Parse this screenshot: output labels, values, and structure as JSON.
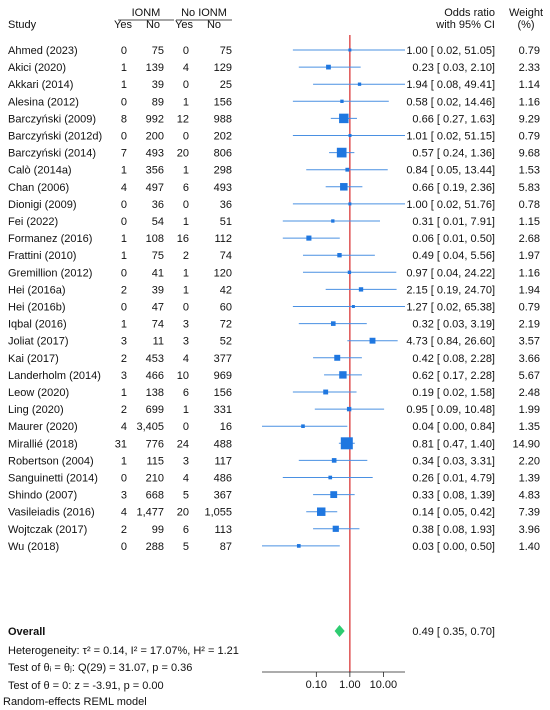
{
  "chart_data": {
    "type": "forest",
    "header": {
      "study": "Study",
      "group1": "IONM",
      "group2": "No IONM",
      "yes": "Yes",
      "no": "No",
      "effect_line1": "Odds ratio",
      "effect_line2": "with 95% CI",
      "weight_line1": "Weight",
      "weight_line2": "(%)"
    },
    "studies": [
      {
        "study": "Ahmed (2023)",
        "ionm_yes": "0",
        "ionm_no": "75",
        "noionm_yes": "0",
        "noionm_no": "75",
        "or": 1.0,
        "lo": 0.02,
        "hi": 51.05,
        "ci_text": "1.00 [ 0.02, 51.05]",
        "weight": 0.79,
        "weight_text": "0.79"
      },
      {
        "study": "Akici (2020)",
        "ionm_yes": "1",
        "ionm_no": "139",
        "noionm_yes": "4",
        "noionm_no": "129",
        "or": 0.23,
        "lo": 0.03,
        "hi": 2.1,
        "ci_text": "0.23 [ 0.03, 2.10]",
        "weight": 2.33,
        "weight_text": "2.33"
      },
      {
        "study": "Akkari (2014)",
        "ionm_yes": "1",
        "ionm_no": "39",
        "noionm_yes": "0",
        "noionm_no": "25",
        "or": 1.94,
        "lo": 0.08,
        "hi": 49.41,
        "ci_text": "1.94 [ 0.08, 49.41]",
        "weight": 1.14,
        "weight_text": "1.14"
      },
      {
        "study": "Alesina (2012)",
        "ionm_yes": "0",
        "ionm_no": "89",
        "noionm_yes": "1",
        "noionm_no": "156",
        "or": 0.58,
        "lo": 0.02,
        "hi": 14.46,
        "ci_text": "0.58 [ 0.02, 14.46]",
        "weight": 1.16,
        "weight_text": "1.16"
      },
      {
        "study": "Barczyński (2009)",
        "ionm_yes": "8",
        "ionm_no": "992",
        "noionm_yes": "12",
        "noionm_no": "988",
        "or": 0.66,
        "lo": 0.27,
        "hi": 1.63,
        "ci_text": "0.66 [ 0.27, 1.63]",
        "weight": 9.29,
        "weight_text": "9.29"
      },
      {
        "study": "Barczyński (2012d)",
        "ionm_yes": "0",
        "ionm_no": "200",
        "noionm_yes": "0",
        "noionm_no": "202",
        "or": 1.01,
        "lo": 0.02,
        "hi": 51.15,
        "ci_text": "1.01 [ 0.02, 51.15]",
        "weight": 0.79,
        "weight_text": "0.79"
      },
      {
        "study": "Barczyński (2014)",
        "ionm_yes": "7",
        "ionm_no": "493",
        "noionm_yes": "20",
        "noionm_no": "806",
        "or": 0.57,
        "lo": 0.24,
        "hi": 1.36,
        "ci_text": "0.57 [ 0.24, 1.36]",
        "weight": 9.68,
        "weight_text": "9.68"
      },
      {
        "study": "Calò (2014a)",
        "ionm_yes": "1",
        "ionm_no": "356",
        "noionm_yes": "1",
        "noionm_no": "298",
        "or": 0.84,
        "lo": 0.05,
        "hi": 13.44,
        "ci_text": "0.84 [ 0.05, 13.44]",
        "weight": 1.53,
        "weight_text": "1.53"
      },
      {
        "study": "Chan (2006)",
        "ionm_yes": "4",
        "ionm_no": "497",
        "noionm_yes": "6",
        "noionm_no": "493",
        "or": 0.66,
        "lo": 0.19,
        "hi": 2.36,
        "ci_text": "0.66 [ 0.19, 2.36]",
        "weight": 5.83,
        "weight_text": "5.83"
      },
      {
        "study": "Dionigi (2009)",
        "ionm_yes": "0",
        "ionm_no": "36",
        "noionm_yes": "0",
        "noionm_no": "36",
        "or": 1.0,
        "lo": 0.02,
        "hi": 51.76,
        "ci_text": "1.00 [ 0.02, 51.76]",
        "weight": 0.78,
        "weight_text": "0.78"
      },
      {
        "study": "Fei (2022)",
        "ionm_yes": "0",
        "ionm_no": "54",
        "noionm_yes": "1",
        "noionm_no": "51",
        "or": 0.31,
        "lo": 0.01,
        "hi": 7.91,
        "ci_text": "0.31 [ 0.01, 7.91]",
        "weight": 1.15,
        "weight_text": "1.15"
      },
      {
        "study": "Formanez (2016)",
        "ionm_yes": "1",
        "ionm_no": "108",
        "noionm_yes": "16",
        "noionm_no": "112",
        "or": 0.06,
        "lo": 0.01,
        "hi": 0.5,
        "ci_text": "0.06 [ 0.01, 0.50]",
        "weight": 2.68,
        "weight_text": "2.68"
      },
      {
        "study": "Frattini (2010)",
        "ionm_yes": "1",
        "ionm_no": "75",
        "noionm_yes": "2",
        "noionm_no": "74",
        "or": 0.49,
        "lo": 0.04,
        "hi": 5.56,
        "ci_text": "0.49 [ 0.04, 5.56]",
        "weight": 1.97,
        "weight_text": "1.97"
      },
      {
        "study": "Gremillion (2012)",
        "ionm_yes": "0",
        "ionm_no": "41",
        "noionm_yes": "1",
        "noionm_no": "120",
        "or": 0.97,
        "lo": 0.04,
        "hi": 24.22,
        "ci_text": "0.97 [ 0.04, 24.22]",
        "weight": 1.16,
        "weight_text": "1.16"
      },
      {
        "study": "Hei (2016a)",
        "ionm_yes": "2",
        "ionm_no": "39",
        "noionm_yes": "1",
        "noionm_no": "42",
        "or": 2.15,
        "lo": 0.19,
        "hi": 24.7,
        "ci_text": "2.15 [ 0.19, 24.70]",
        "weight": 1.94,
        "weight_text": "1.94"
      },
      {
        "study": "Hei (2016b)",
        "ionm_yes": "0",
        "ionm_no": "47",
        "noionm_yes": "0",
        "noionm_no": "60",
        "or": 1.27,
        "lo": 0.02,
        "hi": 65.38,
        "ci_text": "1.27 [ 0.02, 65.38]",
        "weight": 0.79,
        "weight_text": "0.79"
      },
      {
        "study": "Iqbal (2016)",
        "ionm_yes": "1",
        "ionm_no": "74",
        "noionm_yes": "3",
        "noionm_no": "72",
        "or": 0.32,
        "lo": 0.03,
        "hi": 3.19,
        "ci_text": "0.32 [ 0.03, 3.19]",
        "weight": 2.19,
        "weight_text": "2.19"
      },
      {
        "study": "Joliat (2017)",
        "ionm_yes": "3",
        "ionm_no": "11",
        "noionm_yes": "3",
        "noionm_no": "52",
        "or": 4.73,
        "lo": 0.84,
        "hi": 26.6,
        "ci_text": "4.73 [ 0.84, 26.60]",
        "weight": 3.57,
        "weight_text": "3.57"
      },
      {
        "study": "Kai (2017)",
        "ionm_yes": "2",
        "ionm_no": "453",
        "noionm_yes": "4",
        "noionm_no": "377",
        "or": 0.42,
        "lo": 0.08,
        "hi": 2.28,
        "ci_text": "0.42 [ 0.08, 2.28]",
        "weight": 3.66,
        "weight_text": "3.66"
      },
      {
        "study": "Landerholm (2014)",
        "ionm_yes": "3",
        "ionm_no": "466",
        "noionm_yes": "10",
        "noionm_no": "969",
        "or": 0.62,
        "lo": 0.17,
        "hi": 2.28,
        "ci_text": "0.62 [ 0.17, 2.28]",
        "weight": 5.67,
        "weight_text": "5.67"
      },
      {
        "study": "Leow (2020)",
        "ionm_yes": "1",
        "ionm_no": "138",
        "noionm_yes": "6",
        "noionm_no": "156",
        "or": 0.19,
        "lo": 0.02,
        "hi": 1.58,
        "ci_text": "0.19 [ 0.02, 1.58]",
        "weight": 2.48,
        "weight_text": "2.48"
      },
      {
        "study": "Ling (2020)",
        "ionm_yes": "2",
        "ionm_no": "699",
        "noionm_yes": "1",
        "noionm_no": "331",
        "or": 0.95,
        "lo": 0.09,
        "hi": 10.48,
        "ci_text": "0.95 [ 0.09, 10.48]",
        "weight": 1.99,
        "weight_text": "1.99"
      },
      {
        "study": "Maurer (2020)",
        "ionm_yes": "4",
        "ionm_no": "3,405",
        "noionm_yes": "0",
        "noionm_no": "16",
        "or": 0.04,
        "lo": 0.0,
        "hi": 0.84,
        "ci_text": "0.04 [ 0.00, 0.84]",
        "weight": 1.35,
        "weight_text": "1.35"
      },
      {
        "study": "Mirallié (2018)",
        "ionm_yes": "31",
        "ionm_no": "776",
        "noionm_yes": "24",
        "noionm_no": "488",
        "or": 0.81,
        "lo": 0.47,
        "hi": 1.4,
        "ci_text": "0.81 [ 0.47, 1.40]",
        "weight": 14.9,
        "weight_text": "14.90"
      },
      {
        "study": "Robertson (2004)",
        "ionm_yes": "1",
        "ionm_no": "115",
        "noionm_yes": "3",
        "noionm_no": "117",
        "or": 0.34,
        "lo": 0.03,
        "hi": 3.31,
        "ci_text": "0.34 [ 0.03, 3.31]",
        "weight": 2.2,
        "weight_text": "2.20"
      },
      {
        "study": "Sanguinetti (2014)",
        "ionm_yes": "0",
        "ionm_no": "210",
        "noionm_yes": "4",
        "noionm_no": "486",
        "or": 0.26,
        "lo": 0.01,
        "hi": 4.79,
        "ci_text": "0.26 [ 0.01, 4.79]",
        "weight": 1.39,
        "weight_text": "1.39"
      },
      {
        "study": "Shindo (2007)",
        "ionm_yes": "3",
        "ionm_no": "668",
        "noionm_yes": "5",
        "noionm_no": "367",
        "or": 0.33,
        "lo": 0.08,
        "hi": 1.39,
        "ci_text": "0.33 [ 0.08, 1.39]",
        "weight": 4.83,
        "weight_text": "4.83"
      },
      {
        "study": "Vasileiadis (2016)",
        "ionm_yes": "4",
        "ionm_no": "1,477",
        "noionm_yes": "20",
        "noionm_no": "1,055",
        "or": 0.14,
        "lo": 0.05,
        "hi": 0.42,
        "ci_text": "0.14 [ 0.05, 0.42]",
        "weight": 7.39,
        "weight_text": "7.39"
      },
      {
        "study": "Wojtczak (2017)",
        "ionm_yes": "2",
        "ionm_no": "99",
        "noionm_yes": "6",
        "noionm_no": "113",
        "or": 0.38,
        "lo": 0.08,
        "hi": 1.93,
        "ci_text": "0.38 [ 0.08, 1.93]",
        "weight": 3.96,
        "weight_text": "3.96"
      },
      {
        "study": "Wu (2018)",
        "ionm_yes": "0",
        "ionm_no": "288",
        "noionm_yes": "5",
        "noionm_no": "87",
        "or": 0.03,
        "lo": 0.0,
        "hi": 0.5,
        "ci_text": "0.03 [ 0.00, 0.50]",
        "weight": 1.4,
        "weight_text": "1.40"
      }
    ],
    "overall": {
      "label": "Overall",
      "or": 0.49,
      "lo": 0.35,
      "hi": 0.7,
      "ci_text": "0.49 [ 0.35, 0.70]"
    },
    "footnotes": {
      "heterogeneity": "Heterogeneity: τ² = 0.14, I² = 17.07%, H² = 1.21",
      "q_test": "Test of θᵢ = θⱼ: Q(29) = 31.07, p = 0.36",
      "z_test": "Test of θ = 0: z = -3.91, p = 0.00"
    },
    "x_axis": {
      "scale": "log",
      "ticks": [
        0.1,
        1.0,
        10.0
      ],
      "tick_labels": [
        "0.10",
        "1.00",
        "10.00"
      ],
      "range": [
        0.0024,
        44.0
      ],
      "reference_line": 1.0
    },
    "model_note": "Random-effects REML model",
    "colors": {
      "marker": "#1f77e0",
      "ci_line": "#4a90e2",
      "reference": "#d62728",
      "overall": "#2ecc71",
      "text": "#111111"
    }
  }
}
